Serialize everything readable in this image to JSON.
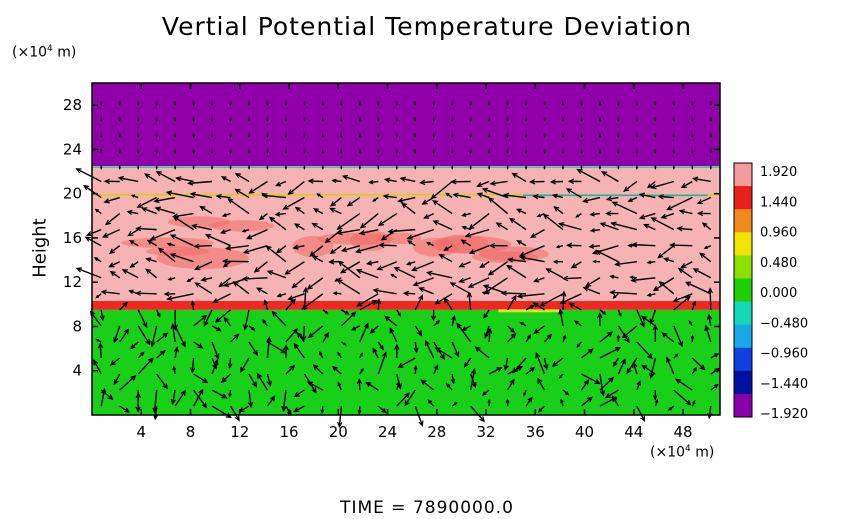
{
  "chart_data": {
    "type": "heatmap",
    "title": "Vertial Potential Temperature Deviation",
    "ylabel": "Height",
    "xunit_prefix": "(×10",
    "xunit_exp": "4",
    "xunit_suffix": " m)",
    "yunit_prefix": "(×10",
    "yunit_exp": "4",
    "yunit_suffix": " m)",
    "xlim": [
      0,
      51
    ],
    "ylim": [
      0,
      30
    ],
    "xticks": [
      4,
      8,
      12,
      16,
      20,
      24,
      28,
      32,
      36,
      40,
      44,
      48
    ],
    "yticks": [
      4,
      8,
      12,
      16,
      20,
      24,
      28
    ],
    "colorbar": {
      "labels": [
        "1.920",
        "1.440",
        "0.960",
        "0.480",
        "0.000",
        "−0.480",
        "−0.960",
        "−1.440",
        "−1.920"
      ],
      "colors": [
        "#f49a9a",
        "#e8201c",
        "#f08a1c",
        "#f0e400",
        "#8ee000",
        "#1fd000",
        "#12d8b8",
        "#18a8e8",
        "#1040e0",
        "#0010a0",
        "#8a00a8"
      ]
    },
    "layers": [
      {
        "name": "ground",
        "y": [
          0,
          9.5
        ],
        "value": 0.0,
        "color": "#18d018"
      },
      {
        "name": "red-band",
        "y": [
          9.5,
          10.3
        ],
        "value": 1.6,
        "color": "#ec2a22"
      },
      {
        "name": "pink-mid",
        "y": [
          10.3,
          22.5
        ],
        "value": 1.92,
        "color": "#f6b3b3"
      },
      {
        "name": "purple-top",
        "y": [
          22.5,
          30
        ],
        "value": -1.92,
        "color": "#9000a8"
      }
    ]
  },
  "footer": {
    "time_label": "TIME  =  7890000.0"
  }
}
